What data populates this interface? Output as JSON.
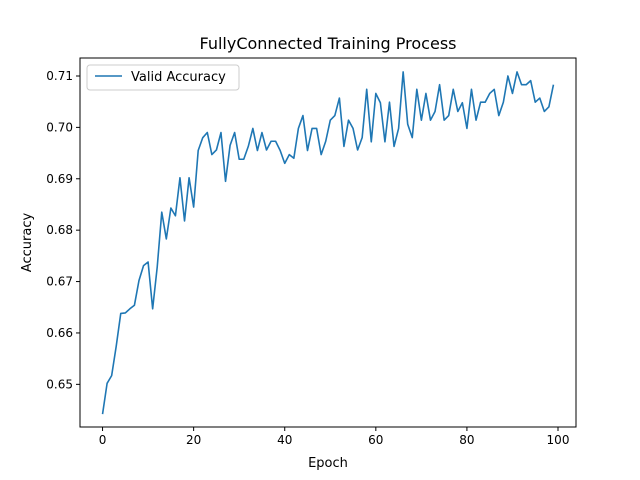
{
  "chart_data": {
    "type": "line",
    "title": "FullyConnected Training Process",
    "xlabel": "Epoch",
    "ylabel": "Accuracy",
    "xlim": [
      -4.95,
      103.95
    ],
    "ylim": [
      0.6417,
      0.7135
    ],
    "xticks": [
      0,
      20,
      40,
      60,
      80,
      100
    ],
    "yticks": [
      0.65,
      0.66,
      0.67,
      0.68,
      0.69,
      0.7,
      0.71
    ],
    "grid": false,
    "legend": "top-left",
    "series": [
      {
        "name": "Valid Accuracy",
        "color": "#1f77b4",
        "x": [
          0,
          1,
          2,
          3,
          4,
          5,
          6,
          7,
          8,
          9,
          10,
          11,
          12,
          13,
          14,
          15,
          16,
          17,
          18,
          19,
          20,
          21,
          22,
          23,
          24,
          25,
          26,
          27,
          28,
          29,
          30,
          31,
          32,
          33,
          34,
          35,
          36,
          37,
          38,
          39,
          40,
          41,
          42,
          43,
          44,
          45,
          46,
          47,
          48,
          49,
          50,
          51,
          52,
          53,
          54,
          55,
          56,
          57,
          58,
          59,
          60,
          61,
          62,
          63,
          64,
          65,
          66,
          67,
          68,
          69,
          70,
          71,
          72,
          73,
          74,
          75,
          76,
          77,
          78,
          79,
          80,
          81,
          82,
          83,
          84,
          85,
          86,
          87,
          88,
          89,
          90,
          91,
          92,
          93,
          94,
          95,
          96,
          97,
          98,
          99
        ],
        "values": [
          0.6442,
          0.6502,
          0.6517,
          0.6574,
          0.6638,
          0.6639,
          0.6647,
          0.6654,
          0.6702,
          0.6731,
          0.6738,
          0.6647,
          0.6728,
          0.6835,
          0.6783,
          0.6843,
          0.6828,
          0.6902,
          0.6818,
          0.6902,
          0.6845,
          0.6955,
          0.698,
          0.699,
          0.6947,
          0.6956,
          0.699,
          0.6895,
          0.6965,
          0.699,
          0.6938,
          0.6938,
          0.6963,
          0.6998,
          0.6955,
          0.699,
          0.6956,
          0.6973,
          0.6973,
          0.6955,
          0.693,
          0.6947,
          0.694,
          0.6998,
          0.7023,
          0.6955,
          0.6998,
          0.6998,
          0.6947,
          0.6973,
          0.7014,
          0.7023,
          0.7057,
          0.6963,
          0.7014,
          0.6998,
          0.6956,
          0.698,
          0.7074,
          0.6972,
          0.7066,
          0.7048,
          0.6972,
          0.7049,
          0.6963,
          0.6998,
          0.7108,
          0.7006,
          0.698,
          0.7074,
          0.7014,
          0.7066,
          0.7014,
          0.7031,
          0.7083,
          0.7014,
          0.7023,
          0.7074,
          0.7031,
          0.7048,
          0.6998,
          0.7074,
          0.7014,
          0.7049,
          0.7049,
          0.7066,
          0.7074,
          0.7023,
          0.7049,
          0.71,
          0.7066,
          0.7108,
          0.7083,
          0.7083,
          0.7091,
          0.7049,
          0.7057,
          0.7031,
          0.704,
          0.7083
        ]
      }
    ]
  }
}
